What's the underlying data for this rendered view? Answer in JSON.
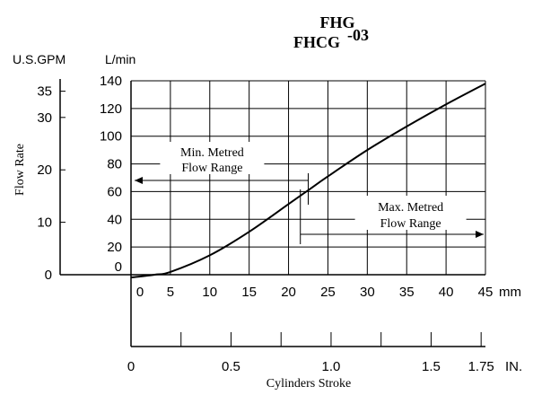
{
  "chart_data": {
    "type": "line",
    "title": {
      "line1": "FHG",
      "line2": "FHCG",
      "suffix": "-03"
    },
    "ylabel": "Flow Rate",
    "y_units": {
      "gpm": "U.S.GPM",
      "lmin": "L/min"
    },
    "x_units": {
      "mm": "mm",
      "in": "IN."
    },
    "xlabel": "Cylinders Stroke",
    "lmin_ticks": [
      "0",
      "20",
      "40",
      "60",
      "80",
      "100",
      "120",
      "140"
    ],
    "gpm_ticks": [
      "0",
      "10",
      "20",
      "30",
      "35"
    ],
    "mm_ticks": [
      "0",
      "5",
      "10",
      "15",
      "20",
      "25",
      "30",
      "35",
      "40",
      "45"
    ],
    "in_ticks": [
      "0",
      "0.5",
      "1.0",
      "1.5",
      "1.75"
    ],
    "xlim_mm": [
      0,
      45
    ],
    "ylim_lmin": [
      0,
      140
    ],
    "series": [
      {
        "x": [
          0,
          3,
          5,
          10,
          15,
          20,
          22.5,
          25,
          30,
          35,
          40,
          45
        ],
        "y": [
          -2,
          0,
          2,
          14,
          31,
          51,
          61,
          71,
          90,
          107,
          123,
          138
        ]
      }
    ],
    "annotations": [
      {
        "label_lines": [
          "Min. Metred",
          "Flow Range"
        ],
        "from_x_mm": 0,
        "to_x_mm": 22.5,
        "arrow": "left"
      },
      {
        "label_lines": [
          "Max. Metred",
          "Flow Range"
        ],
        "from_x_mm": 21.5,
        "to_x_mm": 45,
        "arrow": "right"
      }
    ],
    "grid": true
  }
}
